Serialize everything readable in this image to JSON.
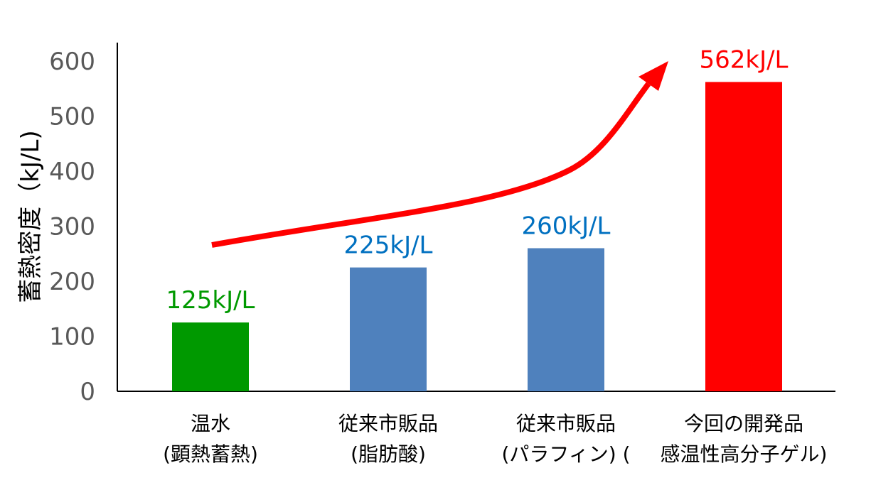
{
  "chart_data": {
    "type": "bar",
    "ylabel": "蓄熱密度（kJ/L)",
    "ylim": [
      0,
      600
    ],
    "yticks": [
      0,
      100,
      200,
      300,
      400,
      500,
      600
    ],
    "grid": false,
    "categories": [
      [
        "温水",
        "(顕熱蓄熱)"
      ],
      [
        "従来市販品",
        "(脂肪酸)"
      ],
      [
        "従来市販品",
        "(パラフィン) ("
      ],
      [
        "今回の開発品",
        "感温性高分子ゲル)"
      ]
    ],
    "values": [
      125,
      225,
      260,
      562
    ],
    "data_labels": [
      "125kJ/L",
      "225kJ/L",
      "260kJ/L",
      "562kJ/L"
    ],
    "bar_colors": [
      "#009900",
      "#4f81bd",
      "#4f81bd",
      "#ff0000"
    ],
    "label_colors": [
      "#009900",
      "#0070c0",
      "#0070c0",
      "#ff0000"
    ],
    "annotation": {
      "type": "trend-arrow",
      "color": "#ff0000"
    }
  }
}
